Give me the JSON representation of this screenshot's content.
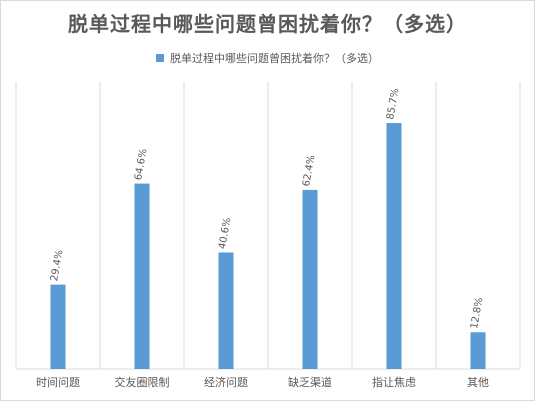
{
  "chart_data": {
    "type": "bar",
    "title": "脱单过程中哪些问题曾困扰着你？（多选）",
    "legend": [
      "脱单过程中哪些问题曾困扰着你？（多选）"
    ],
    "categories": [
      "时间问题",
      "交友圈限制",
      "经济问题",
      "缺乏渠道",
      "指让焦虑",
      "其他"
    ],
    "series": [
      {
        "name": "脱单过程中哪些问题曾困扰着你？（多选）",
        "values": [
          29.4,
          64.6,
          40.6,
          62.4,
          85.7,
          12.8
        ],
        "labels": [
          "29.4%",
          "64.6%",
          "40.6%",
          "62.4%",
          "85.7%",
          "12.8%"
        ]
      }
    ],
    "ylim": [
      0,
      100
    ],
    "grid": "vertical-separators",
    "legend_position": "top",
    "colors": {
      "bar": "#5b9bd5",
      "grid": "#d9d9d9",
      "text": "#595959"
    }
  }
}
